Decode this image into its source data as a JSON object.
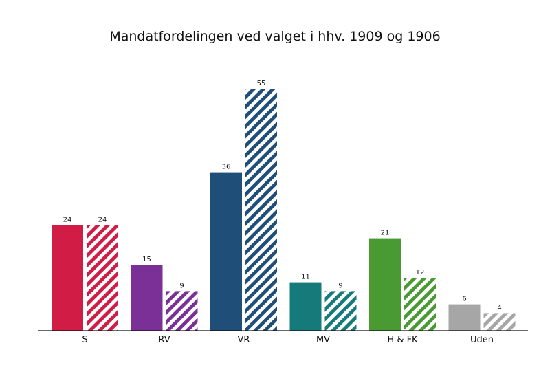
{
  "chart_data": {
    "type": "bar",
    "title": "Mandatfordelingen ved valget i hhv. 1909 og 1906",
    "categories": [
      "S",
      "RV",
      "VR",
      "MV",
      "H & FK",
      "Uden"
    ],
    "colors": [
      "#d11c45",
      "#7b3098",
      "#1f4e79",
      "#167a7b",
      "#4a9a34",
      "#a6a6a6"
    ],
    "series": [
      {
        "values": [
          24,
          15,
          36,
          11,
          21,
          6
        ],
        "fill": "solid"
      },
      {
        "values": [
          24,
          9,
          55,
          9,
          12,
          4
        ],
        "fill": "hatched"
      }
    ],
    "ylim": [
      0,
      57
    ],
    "grid": false,
    "legend": "none"
  }
}
